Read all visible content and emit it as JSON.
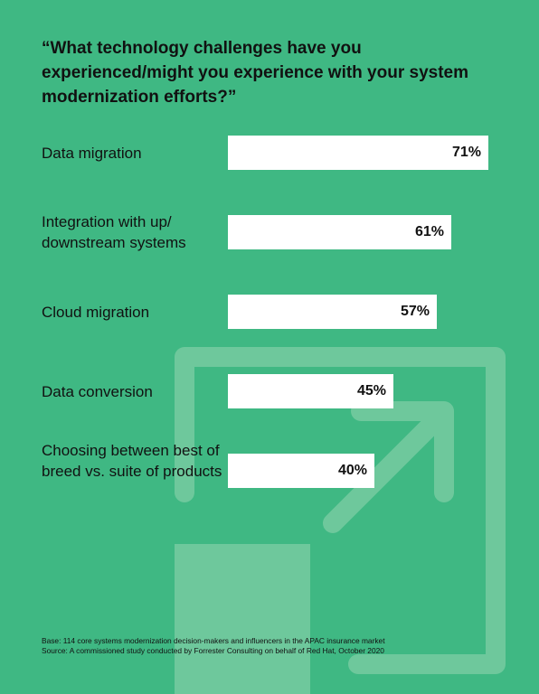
{
  "colors": {
    "background": "#3fb883",
    "bar": "#ffffff",
    "decoration": "#6ec89c",
    "text": "#111111"
  },
  "title": "“What technology challenges have you experienced/might you experience with your system modernization efforts?”",
  "chart_data": {
    "type": "bar",
    "orientation": "horizontal",
    "categories": [
      "Data migration",
      "Integration with up/ downstream systems",
      "Cloud migration",
      "Data conversion",
      "Choosing between best of breed vs. suite of products"
    ],
    "values": [
      71,
      61,
      57,
      45,
      40
    ],
    "value_labels": [
      "71%",
      "61%",
      "57%",
      "45%",
      "40%"
    ],
    "unit": "%",
    "xlim": [
      0,
      100
    ],
    "grid": false,
    "legend": "none"
  },
  "footnotes": {
    "base": "Base: 114 core systems modernization decision-makers and influencers in the APAC insurance market",
    "source": "Source: A commissioned study conducted by Forrester Consulting on behalf of Red Hat, October 2020"
  }
}
